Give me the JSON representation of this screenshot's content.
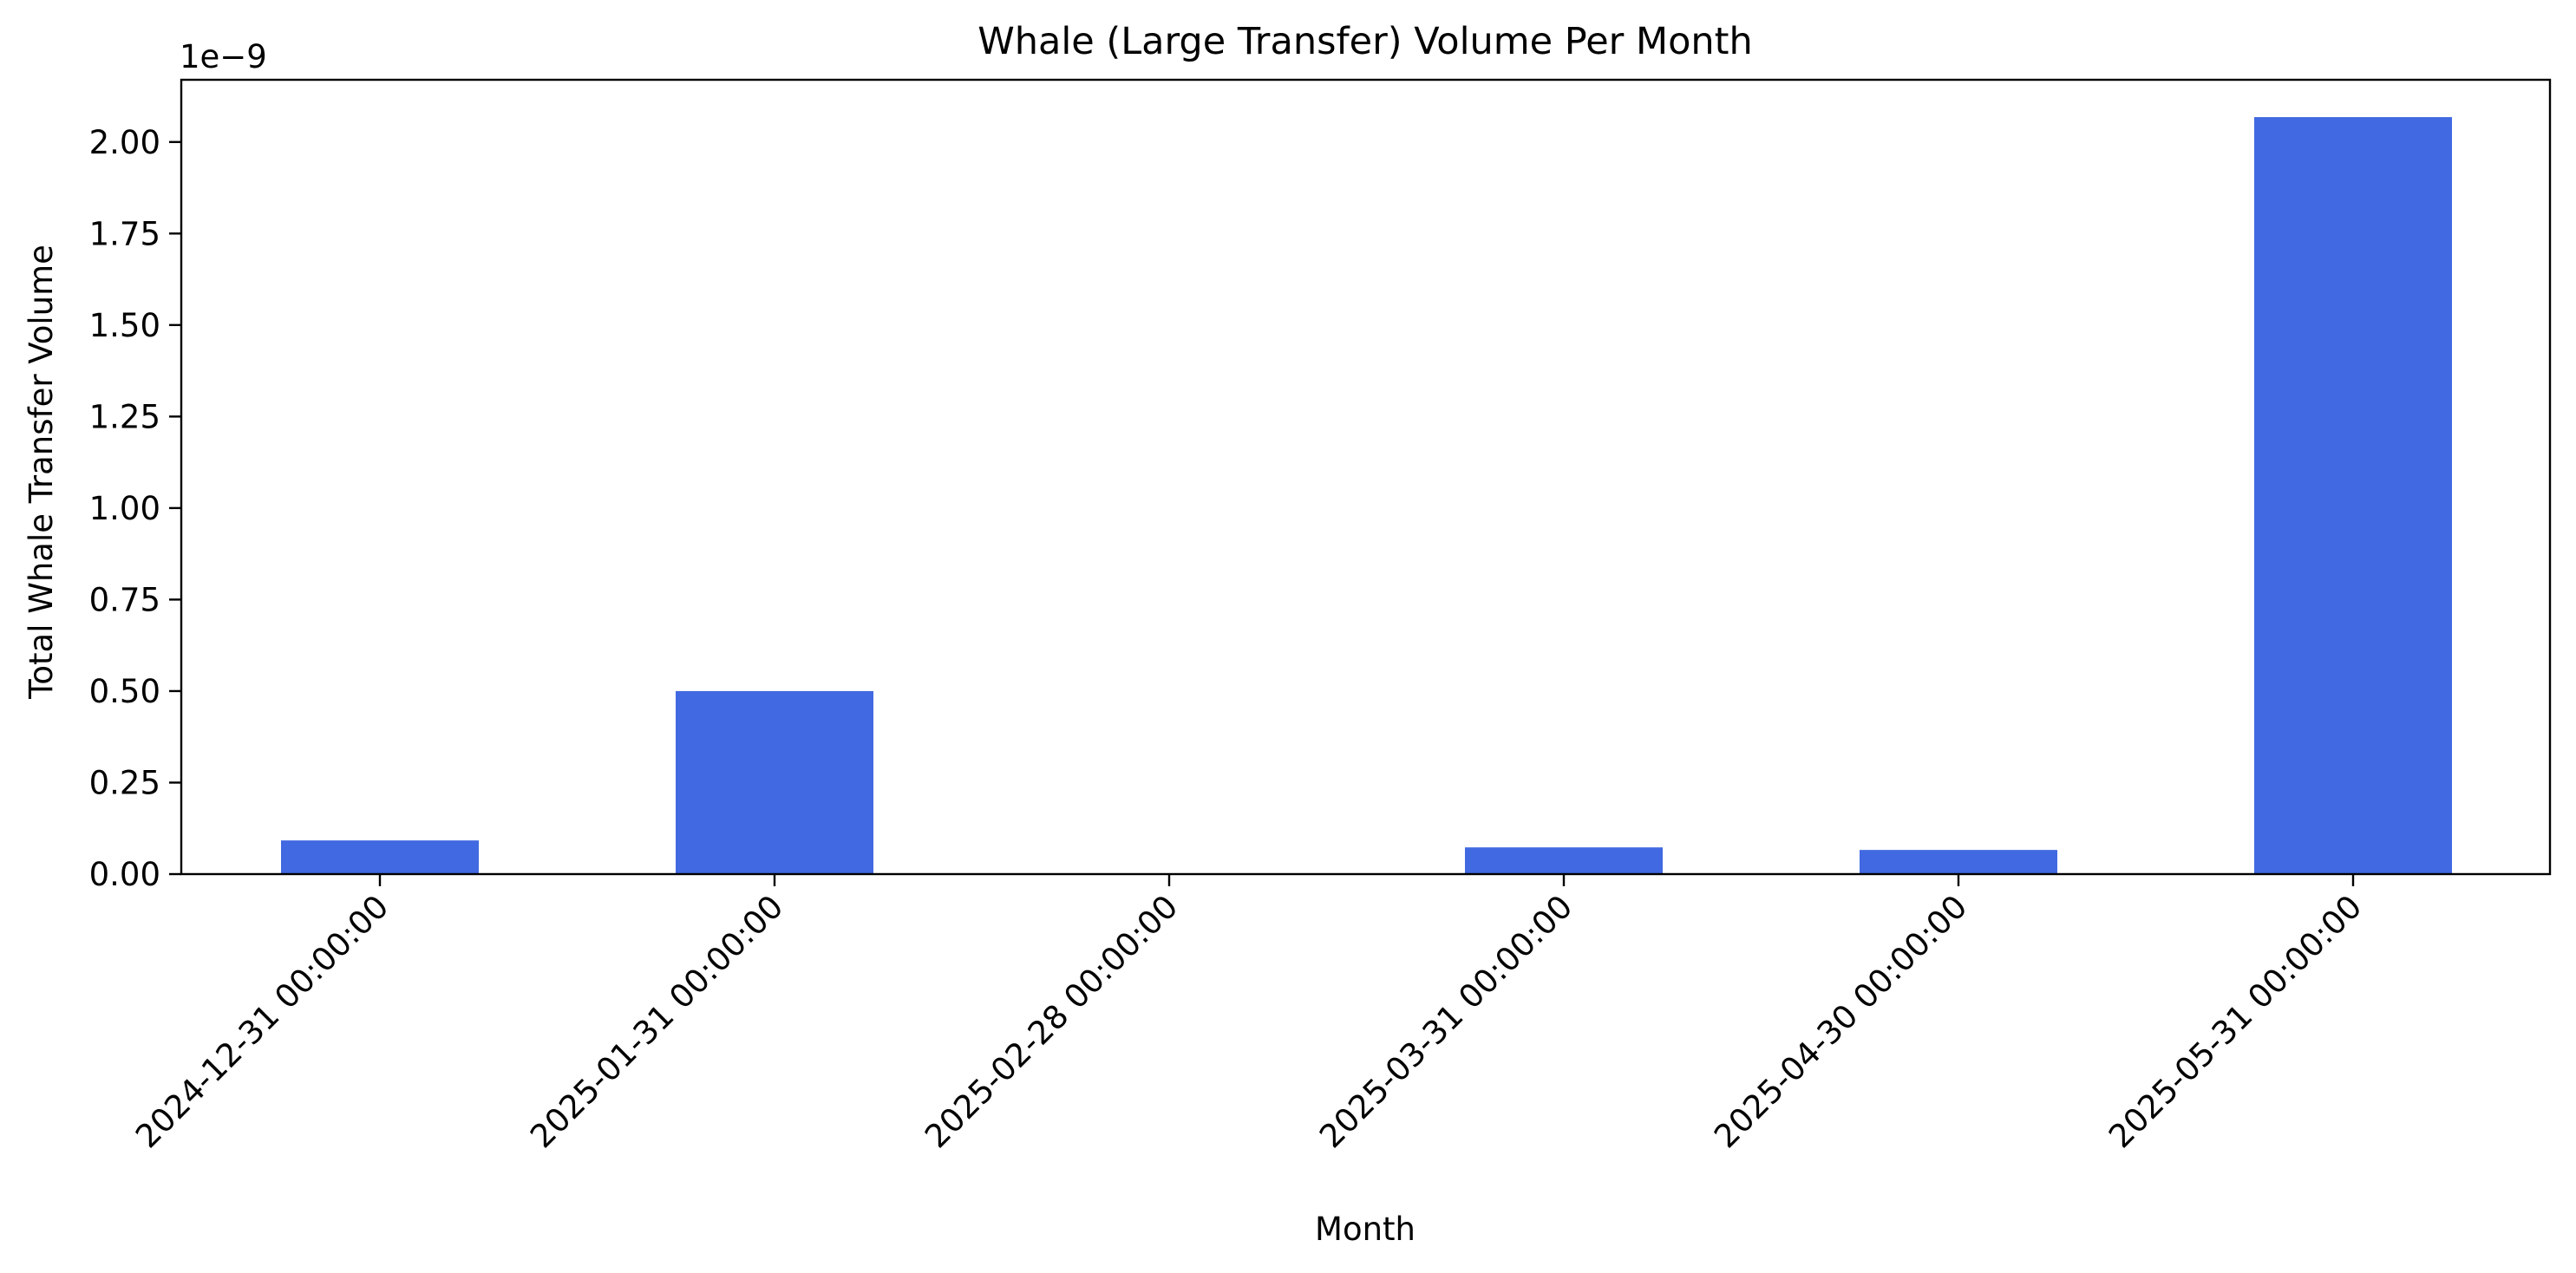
{
  "chart_data": {
    "type": "bar",
    "title": "Whale (Large Transfer) Volume Per Month",
    "xlabel": "Month",
    "ylabel": "Total Whale Transfer Volume",
    "offset_label": "1e−9",
    "categories": [
      "2024-12-31 00:00:00",
      "2025-01-31 00:00:00",
      "2025-02-28 00:00:00",
      "2025-03-31 00:00:00",
      "2025-04-30 00:00:00",
      "2025-05-31 00:00:00"
    ],
    "values": [
      9.2e-11,
      5e-10,
      0,
      7.3e-11,
      6.6e-11,
      2.068e-09
    ],
    "y_ticks": [
      {
        "value": 0.0,
        "label": "0.00"
      },
      {
        "value": 2.5e-10,
        "label": "0.25"
      },
      {
        "value": 5e-10,
        "label": "0.50"
      },
      {
        "value": 7.5e-10,
        "label": "0.75"
      },
      {
        "value": 1e-09,
        "label": "1.00"
      },
      {
        "value": 1.25e-09,
        "label": "1.25"
      },
      {
        "value": 1.5e-09,
        "label": "1.50"
      },
      {
        "value": 1.75e-09,
        "label": "1.75"
      },
      {
        "value": 2e-09,
        "label": "2.00"
      }
    ],
    "ylim": [
      0,
      2.17e-09
    ],
    "bar_color": "#4169e1",
    "grid": false,
    "legend": false
  }
}
